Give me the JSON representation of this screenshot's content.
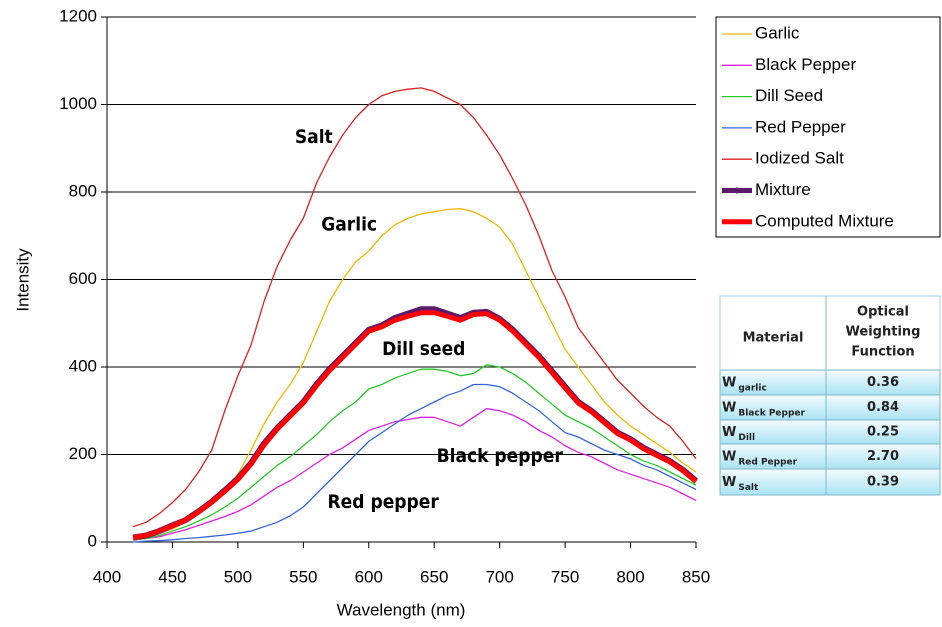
{
  "chart_data": {
    "type": "line",
    "xlabel": "Wavelength (nm)",
    "ylabel": "Intensity",
    "xlim": [
      400,
      850
    ],
    "xticks": [
      400,
      450,
      500,
      550,
      600,
      650,
      700,
      750,
      800,
      850
    ],
    "ylim": [
      0,
      1200
    ],
    "yticks": [
      0,
      200,
      400,
      600,
      800,
      1000,
      1200
    ],
    "grid": true,
    "x": [
      420,
      430,
      440,
      450,
      460,
      470,
      480,
      490,
      500,
      510,
      520,
      530,
      540,
      550,
      560,
      570,
      580,
      590,
      600,
      610,
      620,
      630,
      640,
      650,
      660,
      670,
      680,
      690,
      700,
      710,
      720,
      730,
      740,
      750,
      760,
      770,
      780,
      790,
      800,
      810,
      820,
      830,
      840,
      850
    ],
    "series": [
      {
        "name": "Garlic",
        "color": "#f5b800",
        "line_width": 1.3,
        "values": [
          10,
          15,
          20,
          30,
          45,
          65,
          90,
          120,
          155,
          210,
          270,
          320,
          360,
          410,
          480,
          550,
          600,
          640,
          665,
          700,
          725,
          740,
          750,
          755,
          760,
          762,
          755,
          740,
          720,
          680,
          620,
          560,
          500,
          440,
          400,
          360,
          320,
          290,
          265,
          245,
          225,
          205,
          180,
          160
        ]
      },
      {
        "name": "Black Pepper",
        "color": "#e020e0",
        "line_width": 1.3,
        "values": [
          5,
          8,
          12,
          20,
          28,
          38,
          48,
          58,
          70,
          85,
          105,
          125,
          140,
          160,
          180,
          200,
          215,
          235,
          255,
          265,
          275,
          280,
          285,
          285,
          275,
          265,
          285,
          305,
          300,
          290,
          275,
          255,
          240,
          220,
          205,
          195,
          180,
          165,
          155,
          145,
          135,
          125,
          110,
          95
        ]
      },
      {
        "name": "Dill Seed",
        "color": "#22cc22",
        "line_width": 1.3,
        "values": [
          5,
          8,
          15,
          25,
          35,
          48,
          62,
          80,
          100,
          125,
          150,
          175,
          195,
          220,
          245,
          275,
          300,
          320,
          350,
          360,
          375,
          385,
          395,
          395,
          390,
          380,
          385,
          405,
          400,
          385,
          365,
          340,
          315,
          290,
          275,
          260,
          240,
          220,
          200,
          185,
          175,
          160,
          145,
          130
        ]
      },
      {
        "name": "Red Pepper",
        "color": "#3366dd",
        "line_width": 1.3,
        "values": [
          0,
          2,
          3,
          5,
          8,
          10,
          13,
          16,
          20,
          25,
          35,
          45,
          60,
          80,
          110,
          140,
          170,
          200,
          230,
          250,
          270,
          290,
          305,
          320,
          335,
          345,
          360,
          360,
          355,
          340,
          320,
          300,
          275,
          250,
          240,
          225,
          210,
          200,
          190,
          175,
          165,
          150,
          135,
          120
        ]
      },
      {
        "name": "Iodized Salt",
        "color": "#dd2020",
        "line_width": 1.3,
        "values": [
          35,
          45,
          65,
          90,
          120,
          160,
          210,
          300,
          380,
          450,
          550,
          630,
          690,
          740,
          820,
          880,
          930,
          970,
          1000,
          1020,
          1030,
          1035,
          1038,
          1030,
          1015,
          1000,
          970,
          930,
          885,
          830,
          770,
          700,
          620,
          560,
          490,
          450,
          410,
          370,
          340,
          310,
          285,
          265,
          230,
          190
        ]
      },
      {
        "name": "Mixture",
        "color": "#5b1a6b",
        "line_width": 6,
        "values": [
          10,
          15,
          25,
          38,
          50,
          70,
          92,
          118,
          145,
          180,
          225,
          260,
          290,
          320,
          360,
          395,
          425,
          455,
          485,
          495,
          512,
          522,
          532,
          532,
          522,
          512,
          524,
          526,
          510,
          485,
          455,
          425,
          390,
          355,
          320,
          300,
          275,
          250,
          235,
          215,
          200,
          185,
          165,
          140
        ]
      },
      {
        "name": "Computed Mixture",
        "color": "#ff0000",
        "line_width": 5,
        "values": [
          10,
          15,
          25,
          37,
          50,
          69,
          91,
          116,
          143,
          178,
          222,
          258,
          288,
          318,
          357,
          392,
          422,
          452,
          482,
          492,
          507,
          516,
          524,
          524,
          516,
          507,
          520,
          522,
          507,
          482,
          452,
          422,
          387,
          352,
          318,
          298,
          273,
          248,
          233,
          213,
          198,
          183,
          163,
          138
        ]
      }
    ],
    "annotations": [
      {
        "text": "Salt",
        "x": 558,
        "y": 925
      },
      {
        "text": "Garlic",
        "x": 585,
        "y": 725
      },
      {
        "text": "Dill seed",
        "x": 642,
        "y": 440
      },
      {
        "text": "Black pepper",
        "x": 700,
        "y": 195
      },
      {
        "text": "Red pepper",
        "x": 611,
        "y": 90
      }
    ]
  },
  "table": {
    "header": [
      "Material",
      "Optical",
      "Weighting",
      "Function"
    ],
    "rows": [
      [
        "W",
        "garlic",
        "0.36"
      ],
      [
        "W",
        "Black Pepper",
        "0.84"
      ],
      [
        "W",
        "Dill",
        "0.25"
      ],
      [
        "W",
        "Red Pepper",
        "2.70"
      ],
      [
        "W",
        "Salt",
        "0.39"
      ]
    ]
  }
}
